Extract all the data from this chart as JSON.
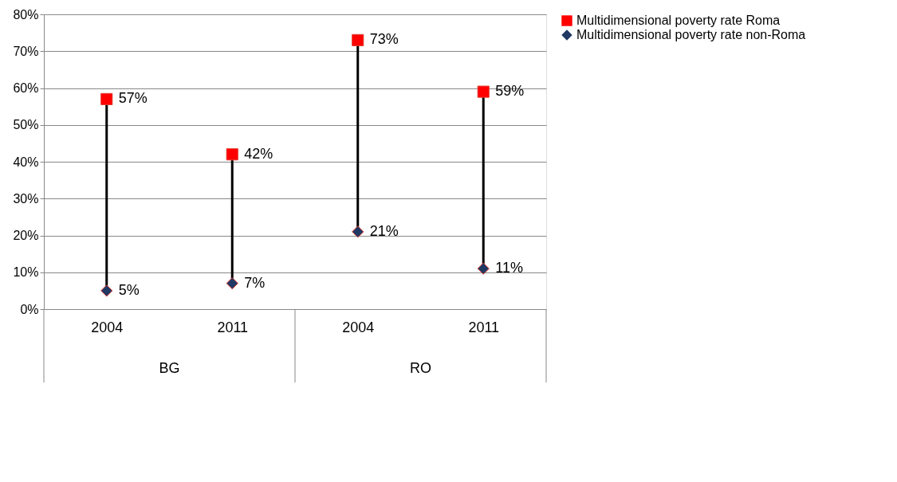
{
  "chart_data": {
    "type": "scatter",
    "categories": [
      "2004",
      "2011",
      "2004",
      "2011"
    ],
    "annotations": [
      "BG",
      "RO"
    ],
    "series": [
      {
        "name": "Multidimensional poverty rate Roma",
        "color": "#ff0000",
        "marker": "square",
        "values": [
          57,
          42,
          73,
          59
        ],
        "value_labels": [
          "57%",
          "42%",
          "73%",
          "59%"
        ]
      },
      {
        "name": "Multidimensional poverty rate non-Roma",
        "color": "#1f3864",
        "marker": "diamond",
        "values": [
          5,
          7,
          21,
          11
        ],
        "value_labels": [
          "5%",
          "7%",
          "21%",
          "11%"
        ]
      }
    ],
    "ylim": [
      0,
      80
    ],
    "yticks": [
      {
        "value": 0,
        "label": "0%"
      },
      {
        "value": 10,
        "label": "10%"
      },
      {
        "value": 20,
        "label": "20%"
      },
      {
        "value": 30,
        "label": "30%"
      },
      {
        "value": 40,
        "label": "40%"
      },
      {
        "value": 50,
        "label": "50%"
      },
      {
        "value": 60,
        "label": "60%"
      },
      {
        "value": 70,
        "label": "70%"
      },
      {
        "value": 80,
        "label": "80%"
      }
    ],
    "grid": "y",
    "legend": "right"
  }
}
